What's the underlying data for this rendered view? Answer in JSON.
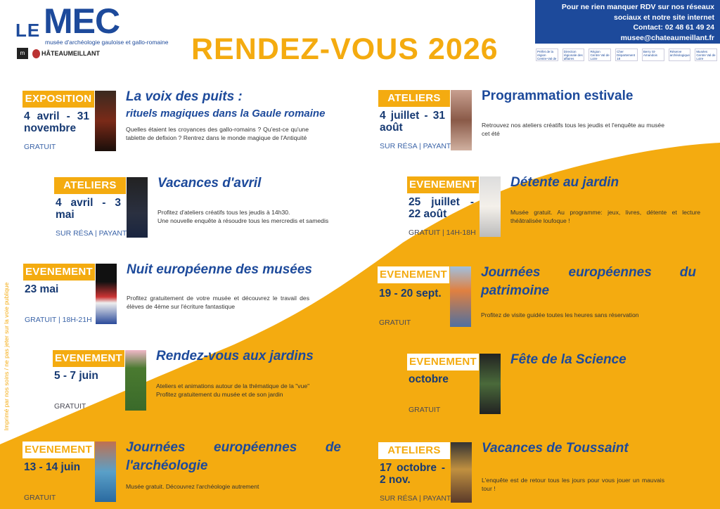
{
  "logo": {
    "le": "LE",
    "mec": "MEC",
    "subtitle": "musée d'archéologie gauloise et gallo-romaine",
    "mini": "m",
    "town": "HÂTEAUMEILLANT"
  },
  "headline": "RENDEZ-VOUS 2026",
  "infobox": {
    "lines": [
      "Pour ne rien manquer RDV sur nos réseaux",
      "sociaux et notre site internet",
      "Contact: 02 48 61 49 24",
      "musee@chateaumeillant.fr"
    ]
  },
  "partners": [
    "Préfet de la région Centre-Val de Loire",
    "Direction régionale des affaires culturelles",
    "Région Centre Val de Loire",
    "Cher Département 18",
    "Berry St-Amandois",
    "Réserve archéologique",
    "Musées Centre Val de Loire"
  ],
  "vertical_note": "Imprimé par nos soins / ne pas jeter sur la voie publique",
  "colors": {
    "blue": "#1d4a9b",
    "orange": "#f4ab10",
    "dark_blue": "#173a73"
  },
  "events": [
    {
      "badge": "EXPOSITION",
      "badge_style": "orange",
      "date": "4 avril - 31 novembre",
      "price": "GRATUIT",
      "title": "La voix des puits :",
      "subtitle": "rituels magiques dans la Gaule romaine",
      "desc": [
        "Quelles étaient les croyances des gallo-romains ? Qu'est-ce qu'une tablette de defixion ? Rentrez dans le monde magique de l'Antiquité"
      ]
    },
    {
      "badge": "ATELIERS",
      "badge_style": "orange",
      "date": "4 avril - 3 mai",
      "price": "SUR RÉSA | PAYANT",
      "title": "Vacances d'avril",
      "desc": [
        "Profitez d'ateliers créatifs tous les jeudis à 14h30.",
        "Une nouvelle enquête à résoudre tous les mercredis et samedis"
      ]
    },
    {
      "badge": "EVENEMENT",
      "badge_style": "orange",
      "date": "23 mai",
      "price": "GRATUIT | 18H-21H",
      "title": "Nuit européenne des musées",
      "desc": [
        "Profitez gratuitement de votre musée et découvrez le travail des élèves de 4ème sur l'écriture fantastique"
      ]
    },
    {
      "badge": "EVENEMENT",
      "badge_style": "orange",
      "date": "5 - 7 juin",
      "price": "GRATUIT",
      "title": "Rendez-vous aux jardins",
      "desc": [
        "Ateliers et animations autour de la thématique de la \"vue\"",
        "Profitez gratuitement du musée et de son jardin"
      ]
    },
    {
      "badge": "EVENEMENT",
      "badge_style": "white",
      "date": "13 - 14 juin",
      "price": "GRATUIT",
      "title": "Journées européennes de l'archéologie",
      "desc": [
        "Musée gratuit. Découvrez l'archéologie autrement"
      ]
    },
    {
      "badge": "ATELIERS",
      "badge_style": "orange",
      "date": "4 juillet - 31 août",
      "price": "SUR RÉSA | PAYANT",
      "title": "Programmation estivale",
      "desc": [
        "Retrouvez nos ateliers créatifs tous les jeudis et l'enquête au musée cet été"
      ]
    },
    {
      "badge": "EVENEMENT",
      "badge_style": "orange",
      "date": "25 juillet - 22 août",
      "price": "GRATUIT | 14H-18H",
      "title": "Détente au jardin",
      "desc": [
        "Musée gratuit. Au programme: jeux, livres, détente et lecture théâtralisée loufoque !"
      ]
    },
    {
      "badge": "EVENEMENT",
      "badge_style": "white",
      "date": "19 - 20 sept.",
      "price": "GRATUIT",
      "title": "Journées européennes du patrimoine",
      "desc": [
        "Profitez de visite guidée toutes les heures sans réservation"
      ]
    },
    {
      "badge": "EVENEMENT",
      "badge_style": "white",
      "date": "octobre",
      "price": "GRATUIT",
      "title": "Fête de la Science",
      "desc": []
    },
    {
      "badge": "ATELIERS",
      "badge_style": "white",
      "date": "17 octobre - 2 nov.",
      "price": "SUR RÉSA | PAYANT",
      "title": "Vacances de Toussaint",
      "desc": [
        "L'enquête est de retour tous les jours pour vous jouer un mauvais tour !"
      ]
    }
  ]
}
